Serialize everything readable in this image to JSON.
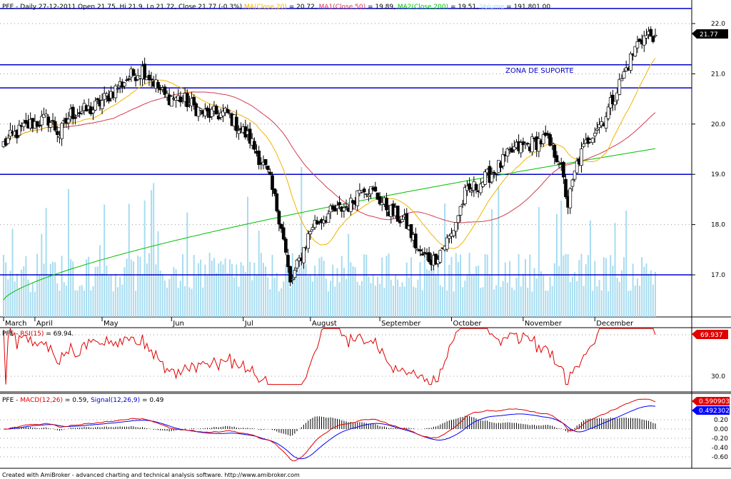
{
  "header": {
    "part1": "PFE - Daily 27-12-2011 Open 21.75, Hi 21.9, Lo 21.72, Close 21.77 (-0.3%) ",
    "ma_label": "MA(Close,20)",
    "ma_value": " = 20.72, ",
    "ma1_label": "MA1(Close,50)",
    "ma1_value": " = 19.89, ",
    "ma2_label": "MA2(Close,200)",
    "ma2_value": " = 19.51, ",
    "vol_label": "Volume",
    "vol_value": " = 191,801.00"
  },
  "annotation": "ZONA DE SUPORTE",
  "price_badge": "21.77",
  "rsi_header": {
    "prefix": "PFE - ",
    "label": "RSI(15)",
    "value": " = 69.94."
  },
  "rsi_badge": "69.937",
  "macd_header": {
    "prefix": "PFE - ",
    "macd_label": "MACD(12,26)",
    "macd_value": " = 0.59, ",
    "signal_label": "Signal(12,26,9)",
    "signal_value": " = 0.49"
  },
  "macd_badge": "0.590903",
  "signal_badge": "0.492302",
  "footer": "Created with AmiBroker - advanced charting and technical analysis software. http://www.amibroker.com",
  "colors": {
    "up": "#ffffff",
    "down": "#000000",
    "ma20": "#f0b400",
    "ma50": "#d23c50",
    "ma200": "#00c000",
    "volume": "#a7dcf0",
    "hline": "#0000c8",
    "rsi": "#e00000",
    "macd": "#e00000",
    "signal": "#0000ff",
    "badge": "#e00000",
    "badge2": "#0000ff"
  },
  "chart_data": {
    "type": "candlestick",
    "months": [
      "March",
      "April",
      "May",
      "Jun",
      "Jul",
      "August",
      "September",
      "October",
      "November",
      "December"
    ],
    "price_axis": {
      "ylim": [
        16.3,
        22.4
      ],
      "ticks": [
        "17.0",
        "18.0",
        "19.0",
        "20.0",
        "21.0",
        "22.0"
      ]
    },
    "horizontal_lines": [
      17.0,
      19.0,
      20.72,
      21.18,
      22.3
    ],
    "waypoints": [
      [
        0,
        19.6
      ],
      [
        5,
        19.8
      ],
      [
        12,
        20.0
      ],
      [
        20,
        20.1
      ],
      [
        25,
        19.8
      ],
      [
        30,
        20.2
      ],
      [
        40,
        20.3
      ],
      [
        50,
        20.7
      ],
      [
        55,
        20.9
      ],
      [
        62,
        21.1
      ],
      [
        66,
        20.9
      ],
      [
        72,
        20.55
      ],
      [
        80,
        20.5
      ],
      [
        90,
        20.2
      ],
      [
        100,
        20.2
      ],
      [
        110,
        19.7
      ],
      [
        118,
        19.0
      ],
      [
        124,
        18.0
      ],
      [
        128,
        16.8
      ],
      [
        133,
        17.4
      ],
      [
        138,
        18.0
      ],
      [
        145,
        18.2
      ],
      [
        155,
        18.4
      ],
      [
        160,
        18.8
      ],
      [
        166,
        18.6
      ],
      [
        172,
        18.3
      ],
      [
        180,
        18.0
      ],
      [
        186,
        17.4
      ],
      [
        192,
        17.3
      ],
      [
        200,
        17.8
      ],
      [
        206,
        18.6
      ],
      [
        212,
        18.8
      ],
      [
        220,
        19.1
      ],
      [
        228,
        19.5
      ],
      [
        235,
        19.6
      ],
      [
        242,
        19.7
      ],
      [
        248,
        19.3
      ],
      [
        252,
        18.4
      ],
      [
        256,
        19.2
      ],
      [
        262,
        19.8
      ],
      [
        268,
        20.1
      ],
      [
        274,
        20.7
      ],
      [
        278,
        21.1
      ],
      [
        284,
        21.7
      ],
      [
        291,
        21.8
      ]
    ],
    "ma_rules": {
      "ma20": 20,
      "ma50": 50,
      "ma200_start": 16.5,
      "ma200_end": 19.51
    },
    "rsi": {
      "label": "RSI(15)",
      "value": 69.94,
      "ticks": [
        "30.0"
      ]
    },
    "macd": {
      "macd": 0.59,
      "signal": 0.49,
      "ticks": [
        "0.20",
        "0.00",
        "-0.20",
        "-0.40",
        "-0.60"
      ],
      "ylim": [
        -0.72,
        0.62
      ]
    }
  }
}
